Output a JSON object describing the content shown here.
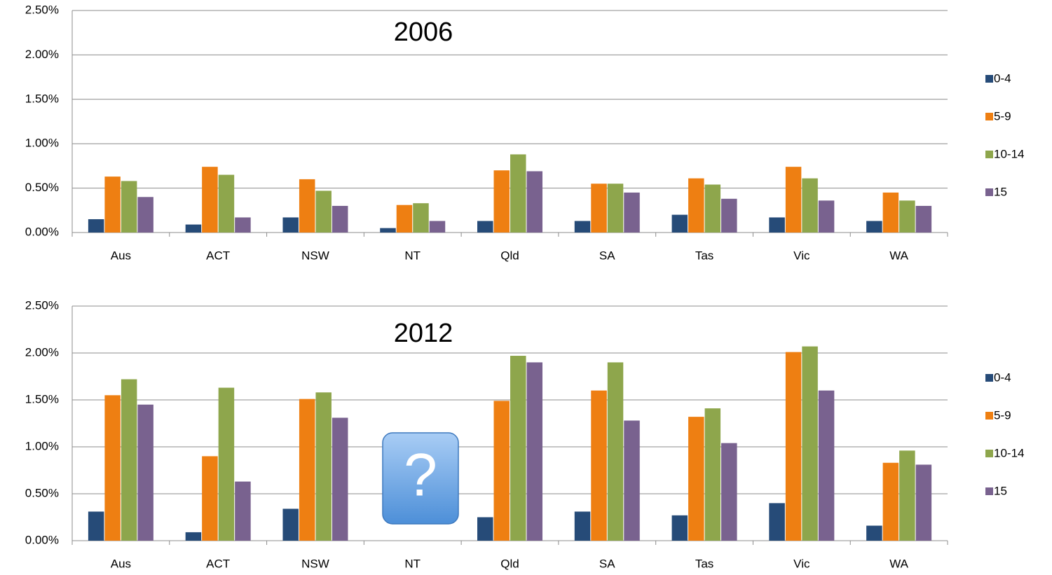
{
  "chart_data": [
    {
      "type": "bar",
      "title": "2006",
      "categories": [
        "Aus",
        "ACT",
        "NSW",
        "NT",
        "Qld",
        "SA",
        "Tas",
        "Vic",
        "WA"
      ],
      "series": [
        {
          "name": "0-4",
          "color": "#264b78",
          "values": [
            0.15,
            0.09,
            0.17,
            0.05,
            0.13,
            0.13,
            0.2,
            0.17,
            0.13
          ]
        },
        {
          "name": "5-9",
          "color": "#ee7f12",
          "values": [
            0.63,
            0.74,
            0.6,
            0.31,
            0.7,
            0.55,
            0.61,
            0.74,
            0.45
          ]
        },
        {
          "name": "10-14",
          "color": "#8ea64c",
          "values": [
            0.58,
            0.65,
            0.47,
            0.33,
            0.88,
            0.55,
            0.54,
            0.61,
            0.36
          ]
        },
        {
          "name": "15",
          "color": "#79628f",
          "values": [
            0.4,
            0.17,
            0.3,
            0.13,
            0.69,
            0.45,
            0.38,
            0.36,
            0.3
          ]
        }
      ],
      "ylim": [
        0,
        2.5
      ],
      "yticks": [
        {
          "value": 0,
          "label": "0.00%"
        },
        {
          "value": 0.5,
          "label": "0.50%"
        },
        {
          "value": 1,
          "label": "1.00%"
        },
        {
          "value": 1.5,
          "label": "1.50%"
        },
        {
          "value": 2,
          "label": "2.00%"
        },
        {
          "value": 2.5,
          "label": "2.50%"
        }
      ],
      "grid": true,
      "legend": "right"
    },
    {
      "type": "bar",
      "title": "2012",
      "annotation": "?",
      "categories": [
        "Aus",
        "ACT",
        "NSW",
        "NT",
        "Qld",
        "SA",
        "Tas",
        "Vic",
        "WA"
      ],
      "series": [
        {
          "name": "0-4",
          "color": "#264b78",
          "values": [
            0.31,
            0.09,
            0.34,
            null,
            0.25,
            0.31,
            0.27,
            0.4,
            0.16
          ]
        },
        {
          "name": "5-9",
          "color": "#ee7f12",
          "values": [
            1.55,
            0.9,
            1.51,
            null,
            1.49,
            1.6,
            1.32,
            2.01,
            0.83
          ]
        },
        {
          "name": "10-14",
          "color": "#8ea64c",
          "values": [
            1.72,
            1.63,
            1.58,
            null,
            1.97,
            1.9,
            1.41,
            2.07,
            0.96
          ]
        },
        {
          "name": "15",
          "color": "#79628f",
          "values": [
            1.45,
            0.63,
            1.31,
            null,
            1.9,
            1.28,
            1.04,
            1.6,
            0.81
          ]
        }
      ],
      "ylim": [
        0,
        2.5
      ],
      "yticks": [
        {
          "value": 0,
          "label": "0.00%"
        },
        {
          "value": 0.5,
          "label": "0.50%"
        },
        {
          "value": 1,
          "label": "1.00%"
        },
        {
          "value": 1.5,
          "label": "1.50%"
        },
        {
          "value": 2,
          "label": "2.00%"
        },
        {
          "value": 2.5,
          "label": "2.50%"
        }
      ],
      "grid": true,
      "legend": "right"
    }
  ]
}
